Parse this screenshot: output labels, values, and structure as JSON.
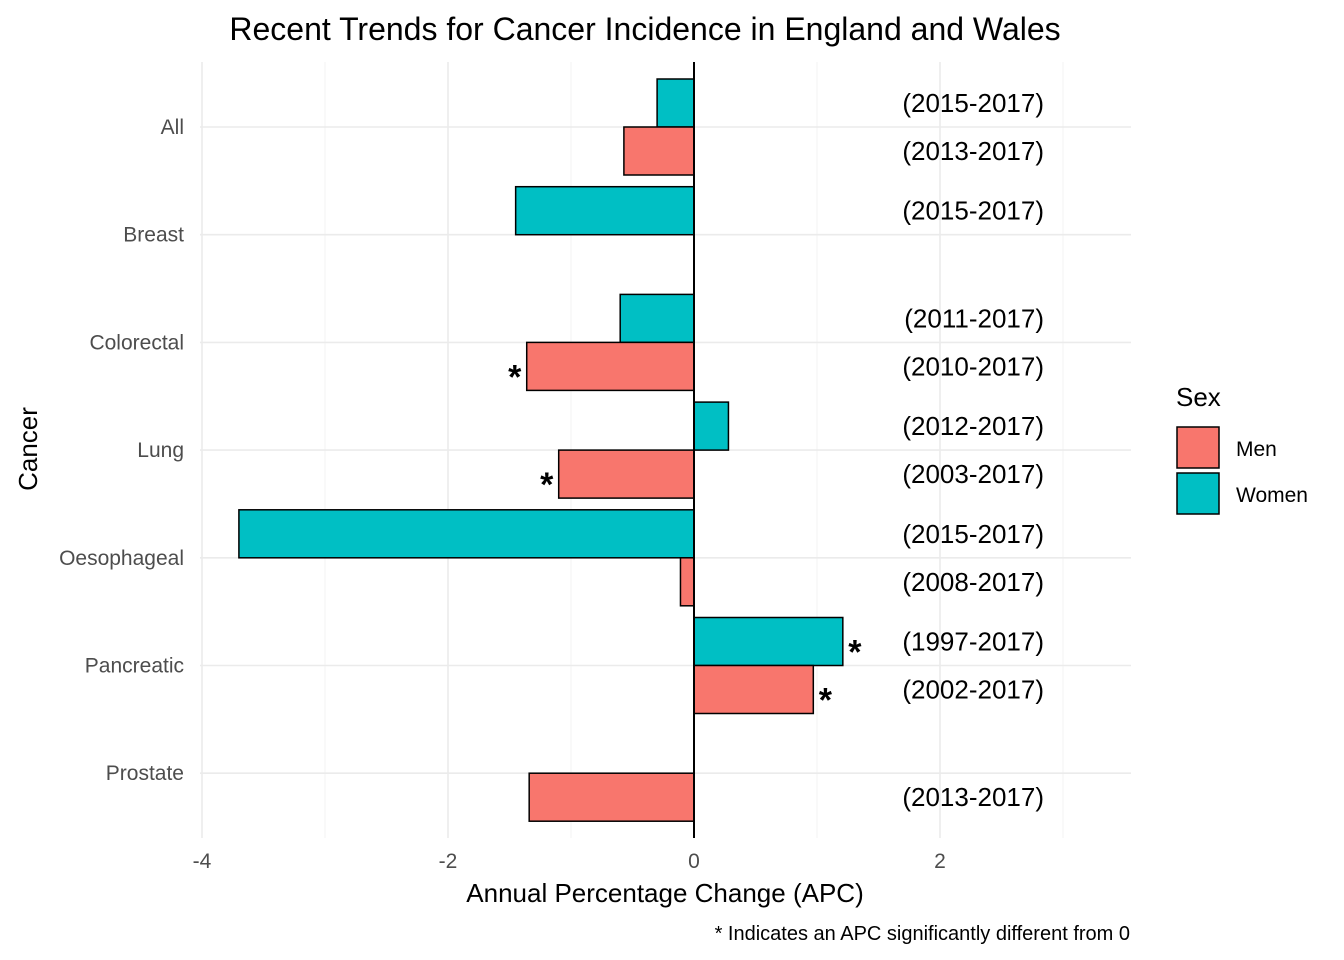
{
  "chart_data": {
    "type": "bar",
    "orientation": "horizontal",
    "title": "Recent Trends for Cancer Incidence in England and Wales",
    "xlabel": "Annual Percentage Change (APC)",
    "ylabel": "Cancer",
    "caption": "* Indicates an APC significantly different from 0",
    "xlim": [
      -4,
      3.5
    ],
    "x_ticks": [
      -4,
      -2,
      0,
      2
    ],
    "grid": true,
    "legend": {
      "title": "Sex",
      "position": "right"
    },
    "categories": [
      "All",
      "Breast",
      "Colorectal",
      "Lung",
      "Oesophageal",
      "Pancreatic",
      "Prostate"
    ],
    "series": [
      {
        "name": "Women",
        "color": "#00BFC4",
        "values": [
          -0.3,
          -1.45,
          -0.6,
          0.28,
          -3.7,
          1.21,
          null
        ],
        "periods": [
          "(2015-2017)",
          "(2015-2017)",
          "(2011-2017)",
          "(2012-2017)",
          "(2015-2017)",
          "(1997-2017)",
          null
        ],
        "significant": [
          false,
          false,
          false,
          false,
          false,
          true,
          false
        ]
      },
      {
        "name": "Men",
        "color": "#F8766D",
        "values": [
          -0.57,
          null,
          -1.36,
          -1.1,
          -0.11,
          0.97,
          -1.34
        ],
        "periods": [
          "(2013-2017)",
          null,
          "(2010-2017)",
          "(2003-2017)",
          "(2008-2017)",
          "(2002-2017)",
          "(2013-2017)"
        ],
        "significant": [
          false,
          false,
          true,
          true,
          false,
          true,
          false
        ]
      }
    ],
    "significance_marker": "*"
  }
}
